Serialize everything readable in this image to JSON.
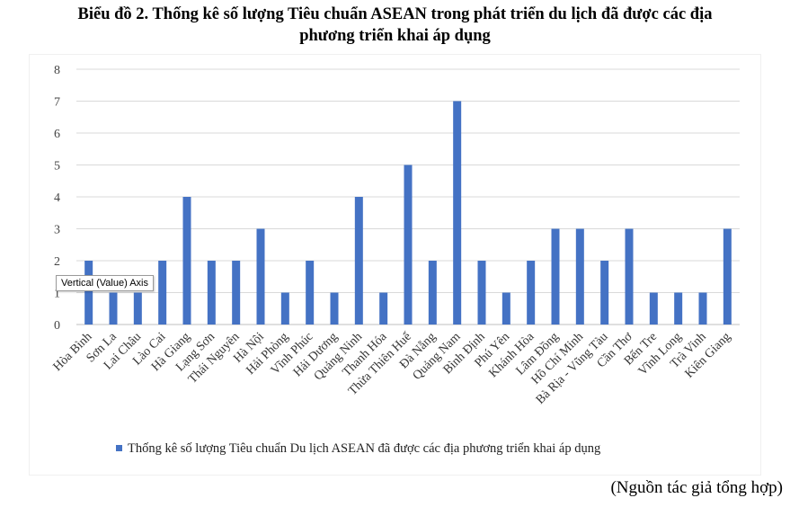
{
  "chart_data": {
    "type": "bar",
    "title_line1": "Biểu đồ 2. Thống kê số lượng Tiêu chuẩn ASEAN trong phát triển du lịch đã được các địa",
    "title_line2": "phương triển khai áp dụng",
    "categories": [
      "Hòa Bình",
      "Sơn La",
      "Lai Châu",
      "Lào Cai",
      "Hà Giang",
      "Lạng Sơn",
      "Thái Nguyên",
      "Hà Nội",
      "Hải Phòng",
      "Vĩnh Phúc",
      "Hải Dương",
      "Quảng Ninh",
      "Thanh Hóa",
      "Thừa Thiên Huế",
      "Đà Nẵng",
      "Quảng Nam",
      "Bình Định",
      "Phú Yên",
      "Khánh Hòa",
      "Lâm Đồng",
      "Hồ Chí Minh",
      "Bà Rịa - Vũng Tàu",
      "Cần Thơ",
      "Bến Tre",
      "Vĩnh Long",
      "Trà Vinh",
      "Kiên Giang"
    ],
    "series": [
      {
        "name": "Thống kê số lượng Tiêu chuẩn Du lịch ASEAN đã được các địa phương triển khai áp dụng",
        "values": [
          2,
          1,
          1,
          2,
          4,
          2,
          2,
          3,
          1,
          2,
          1,
          4,
          1,
          5,
          2,
          7,
          2,
          1,
          2,
          3,
          3,
          2,
          3,
          1,
          1,
          1,
          3
        ],
        "color": "#4472C4"
      }
    ],
    "ylim": [
      0,
      8
    ],
    "yticks": [
      "0",
      "1",
      "2",
      "3",
      "4",
      "5",
      "6",
      "7",
      "8"
    ],
    "grid": true,
    "legend_position": "bottom"
  },
  "tooltip_text": "Vertical (Value) Axis",
  "source_note": "(Nguồn tác giả tổng hợp)"
}
